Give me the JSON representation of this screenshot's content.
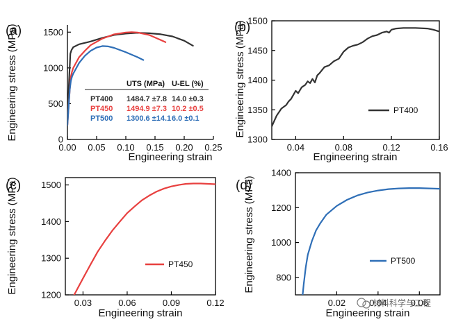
{
  "colors": {
    "PT400": "#333333",
    "PT450": "#e8403f",
    "PT500": "#2f6fb7"
  },
  "watermark": "材料科学与工程",
  "chart_data": [
    {
      "panel": "(a)",
      "type": "line",
      "xlabel": "Engineering strain",
      "ylabel": "Engineering stress (MPa)",
      "xlim": [
        0,
        0.25
      ],
      "ylim": [
        0,
        1600
      ],
      "xticks": [
        "0.00",
        "0.05",
        "0.10",
        "0.15",
        "0.20",
        "0.25"
      ],
      "yticks": [
        "0",
        "500",
        "1000",
        "1500"
      ],
      "series": [
        {
          "name": "PT400",
          "color": "#333333",
          "x": [
            0,
            0.003,
            0.005,
            0.007,
            0.01,
            0.02,
            0.04,
            0.06,
            0.08,
            0.1,
            0.12,
            0.14,
            0.16,
            0.18,
            0.2,
            0.215
          ],
          "y": [
            250,
            850,
            1200,
            1250,
            1290,
            1330,
            1370,
            1420,
            1460,
            1480,
            1490,
            1485,
            1470,
            1440,
            1380,
            1310
          ]
        },
        {
          "name": "PT450",
          "color": "#e8403f",
          "x": [
            0,
            0.004,
            0.006,
            0.008,
            0.01,
            0.02,
            0.03,
            0.04,
            0.06,
            0.08,
            0.1,
            0.11,
            0.12,
            0.14,
            0.16,
            0.168
          ],
          "y": [
            200,
            700,
            880,
            950,
            1000,
            1150,
            1240,
            1320,
            1410,
            1470,
            1495,
            1500,
            1495,
            1460,
            1390,
            1360
          ]
        },
        {
          "name": "PT500",
          "color": "#2f6fb7",
          "x": [
            0,
            0.004,
            0.006,
            0.008,
            0.01,
            0.02,
            0.03,
            0.04,
            0.05,
            0.06,
            0.07,
            0.08,
            0.09,
            0.1,
            0.12,
            0.13
          ],
          "y": [
            200,
            700,
            820,
            880,
            920,
            1070,
            1170,
            1240,
            1285,
            1305,
            1300,
            1280,
            1250,
            1220,
            1150,
            1110
          ]
        }
      ],
      "table": {
        "headers": [
          "",
          "UTS (MPa)",
          "U-EL (%)"
        ],
        "rows": [
          {
            "name": "PT400",
            "uts": "1484.7 ±7.8",
            "uel": "14.0 ±0.3"
          },
          {
            "name": "PT450",
            "uts": "1494.9 ±7.3",
            "uel": "10.2 ±0.5"
          },
          {
            "name": "PT500",
            "uts": "1300.6 ±14.1",
            "uel": "6.0 ±0.1"
          }
        ]
      }
    },
    {
      "panel": "(b)",
      "type": "line",
      "xlabel": "Engineering strain",
      "ylabel": "Engineering stress (MPa)",
      "xlim": [
        0.02,
        0.16
      ],
      "ylim": [
        1300,
        1500
      ],
      "xticks": [
        "0.04",
        "0.08",
        "0.12",
        "0.16"
      ],
      "yticks": [
        "1300",
        "1350",
        "1400",
        "1450",
        "1500"
      ],
      "legend": "PT400",
      "series": [
        {
          "name": "PT400",
          "color": "#333333",
          "x": [
            0.02,
            0.024,
            0.028,
            0.032,
            0.034,
            0.036,
            0.04,
            0.042,
            0.045,
            0.048,
            0.05,
            0.052,
            0.054,
            0.056,
            0.058,
            0.06,
            0.064,
            0.068,
            0.072,
            0.076,
            0.08,
            0.084,
            0.088,
            0.092,
            0.096,
            0.1,
            0.104,
            0.108,
            0.112,
            0.116,
            0.118,
            0.12,
            0.124,
            0.13,
            0.14,
            0.15,
            0.155,
            0.16
          ],
          "y": [
            1322,
            1340,
            1352,
            1358,
            1364,
            1368,
            1382,
            1378,
            1388,
            1392,
            1398,
            1395,
            1402,
            1396,
            1408,
            1412,
            1422,
            1425,
            1432,
            1436,
            1448,
            1455,
            1458,
            1460,
            1464,
            1470,
            1474,
            1476,
            1480,
            1482,
            1480,
            1485,
            1487,
            1488,
            1488,
            1487,
            1485,
            1482
          ]
        }
      ]
    },
    {
      "panel": "(c)",
      "type": "line",
      "xlabel": "Engineering strain",
      "ylabel": "Engineering stress (MPa)",
      "xlim": [
        0.018,
        0.12
      ],
      "ylim": [
        1200,
        1520
      ],
      "xticks": [
        "0.03",
        "0.06",
        "0.09",
        "0.12"
      ],
      "yticks": [
        "1200",
        "1300",
        "1400",
        "1500"
      ],
      "legend": "PT450",
      "series": [
        {
          "name": "PT450",
          "color": "#e8403f",
          "x": [
            0.024,
            0.03,
            0.035,
            0.04,
            0.045,
            0.05,
            0.055,
            0.06,
            0.065,
            0.07,
            0.075,
            0.08,
            0.085,
            0.09,
            0.095,
            0.1,
            0.105,
            0.11,
            0.115,
            0.12
          ],
          "y": [
            1200,
            1245,
            1282,
            1318,
            1348,
            1376,
            1400,
            1423,
            1441,
            1458,
            1471,
            1482,
            1490,
            1496,
            1500,
            1503,
            1504,
            1504,
            1503,
            1502
          ]
        }
      ]
    },
    {
      "panel": "(d)",
      "type": "line",
      "xlabel": "Engineering strain",
      "ylabel": "Engineering stress (MPa)",
      "xlim": [
        0,
        0.07
      ],
      "ylim": [
        700,
        1400
      ],
      "xticks": [
        "0.02",
        "0.04",
        "0.06"
      ],
      "yticks": [
        "800",
        "1000",
        "1200",
        "1400"
      ],
      "legend": "PT500",
      "series": [
        {
          "name": "PT500",
          "color": "#2f6fb7",
          "x": [
            0.0035,
            0.004,
            0.005,
            0.006,
            0.008,
            0.01,
            0.012,
            0.015,
            0.02,
            0.025,
            0.03,
            0.035,
            0.04,
            0.045,
            0.05,
            0.055,
            0.06,
            0.065,
            0.07
          ],
          "y": [
            700,
            760,
            860,
            930,
            1010,
            1070,
            1110,
            1160,
            1210,
            1245,
            1270,
            1287,
            1298,
            1306,
            1310,
            1312,
            1312,
            1310,
            1308
          ]
        }
      ]
    }
  ]
}
